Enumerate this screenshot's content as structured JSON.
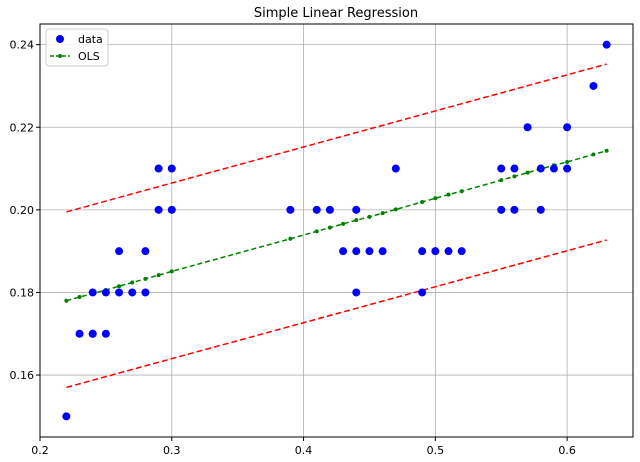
{
  "chart_data": {
    "type": "scatter",
    "title": "Simple Linear Regression",
    "xlabel": "",
    "ylabel": "",
    "xlim": [
      0.2,
      0.65
    ],
    "ylim": [
      0.145,
      0.245
    ],
    "xticks": [
      0.2,
      0.3,
      0.4,
      0.5,
      0.6
    ],
    "yticks": [
      0.16,
      0.18,
      0.2,
      0.22,
      0.24
    ],
    "xtick_labels": [
      "0.2",
      "0.3",
      "0.4",
      "0.5",
      "0.6"
    ],
    "ytick_labels": [
      "0.16",
      "0.18",
      "0.20",
      "0.22",
      "0.24"
    ],
    "grid": true,
    "legend_position": "top-left",
    "legend": [
      {
        "label": "data",
        "color": "#0000ff",
        "marker": "circle"
      },
      {
        "label": "OLS",
        "color": "#008000",
        "marker": "dashed-dot"
      }
    ],
    "series": [
      {
        "name": "data",
        "kind": "scatter",
        "color": "#0000ff",
        "points": [
          [
            0.22,
            0.15
          ],
          [
            0.23,
            0.17
          ],
          [
            0.24,
            0.17
          ],
          [
            0.24,
            0.17
          ],
          [
            0.24,
            0.18
          ],
          [
            0.25,
            0.17
          ],
          [
            0.25,
            0.18
          ],
          [
            0.26,
            0.18
          ],
          [
            0.26,
            0.19
          ],
          [
            0.27,
            0.18
          ],
          [
            0.28,
            0.18
          ],
          [
            0.28,
            0.19
          ],
          [
            0.29,
            0.2
          ],
          [
            0.29,
            0.21
          ],
          [
            0.3,
            0.2
          ],
          [
            0.3,
            0.21
          ],
          [
            0.39,
            0.2
          ],
          [
            0.41,
            0.2
          ],
          [
            0.42,
            0.2
          ],
          [
            0.43,
            0.19
          ],
          [
            0.44,
            0.18
          ],
          [
            0.44,
            0.19
          ],
          [
            0.44,
            0.2
          ],
          [
            0.45,
            0.19
          ],
          [
            0.46,
            0.19
          ],
          [
            0.47,
            0.21
          ],
          [
            0.49,
            0.18
          ],
          [
            0.49,
            0.19
          ],
          [
            0.5,
            0.19
          ],
          [
            0.51,
            0.19
          ],
          [
            0.52,
            0.19
          ],
          [
            0.55,
            0.2
          ],
          [
            0.55,
            0.21
          ],
          [
            0.56,
            0.2
          ],
          [
            0.56,
            0.21
          ],
          [
            0.57,
            0.22
          ],
          [
            0.58,
            0.2
          ],
          [
            0.58,
            0.21
          ],
          [
            0.59,
            0.21
          ],
          [
            0.6,
            0.21
          ],
          [
            0.6,
            0.22
          ],
          [
            0.62,
            0.23
          ],
          [
            0.63,
            0.24
          ]
        ]
      },
      {
        "name": "OLS",
        "kind": "line",
        "color": "#008000",
        "style": "dashed",
        "points": [
          [
            0.22,
            0.178
          ],
          [
            0.23,
            0.1789
          ],
          [
            0.24,
            0.1797
          ],
          [
            0.25,
            0.1806
          ],
          [
            0.26,
            0.1815
          ],
          [
            0.27,
            0.1824
          ],
          [
            0.28,
            0.1833
          ],
          [
            0.29,
            0.1842
          ],
          [
            0.3,
            0.1851
          ],
          [
            0.39,
            0.193
          ],
          [
            0.41,
            0.1948
          ],
          [
            0.42,
            0.1957
          ],
          [
            0.43,
            0.1966
          ],
          [
            0.44,
            0.1975
          ],
          [
            0.45,
            0.1983
          ],
          [
            0.46,
            0.1992
          ],
          [
            0.47,
            0.2001
          ],
          [
            0.49,
            0.2019
          ],
          [
            0.5,
            0.2028
          ],
          [
            0.51,
            0.2037
          ],
          [
            0.52,
            0.2045
          ],
          [
            0.55,
            0.2072
          ],
          [
            0.56,
            0.2081
          ],
          [
            0.57,
            0.209
          ],
          [
            0.58,
            0.2099
          ],
          [
            0.59,
            0.2108
          ],
          [
            0.6,
            0.2116
          ],
          [
            0.62,
            0.2134
          ],
          [
            0.63,
            0.2143
          ]
        ]
      },
      {
        "kind": "line",
        "color": "#ff0000",
        "style": "dashed",
        "points": [
          [
            0.22,
            0.1995
          ],
          [
            0.63,
            0.2353
          ]
        ]
      },
      {
        "kind": "line",
        "color": "#ff0000",
        "style": "dashed",
        "points": [
          [
            0.22,
            0.157
          ],
          [
            0.63,
            0.1927
          ]
        ]
      }
    ]
  }
}
